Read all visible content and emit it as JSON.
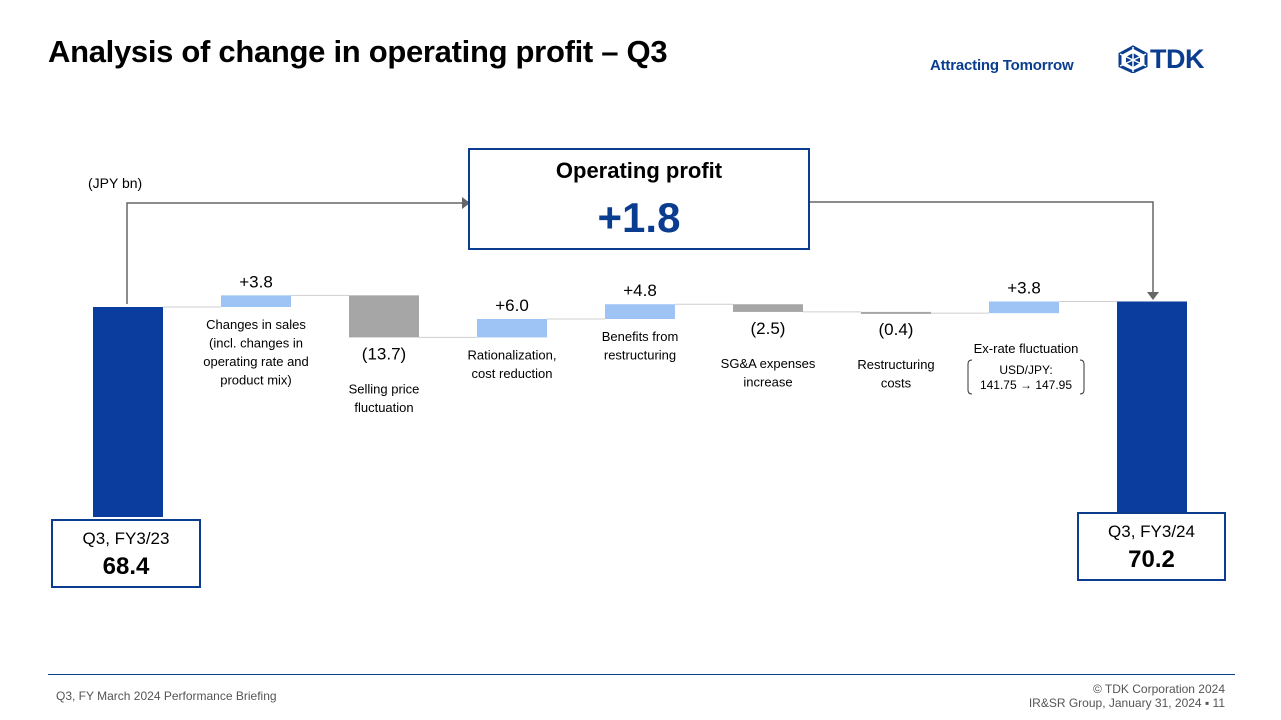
{
  "header": {
    "title": "Analysis of change in operating profit – Q3",
    "tagline": "Attracting Tomorrow",
    "logo_text": "TDK",
    "logo_icon": "tdk-emblem-icon"
  },
  "footer": {
    "left": "Q3, FY March 2024 Performance  Briefing",
    "copyright": "© TDK Corporation 2024",
    "group_date": "IR&SR Group, January 31, 2024",
    "page_number": "11"
  },
  "colors": {
    "total": "#0a3d9e",
    "positive": "#9ec3f5",
    "negative": "#a6a6a6",
    "accent": "#0a3d8f"
  },
  "chart_data": {
    "type": "bar",
    "subtype": "waterfall",
    "unit": "(JPY bn)",
    "categories": [
      "Q3, FY3/23",
      "Changes in sales\n(incl. changes in\noperating rate and\nproduct mix)",
      "Selling price\nfluctuation",
      "Rationalization,\ncost reduction",
      "Benefits from\nrestructuring",
      "SG&A expenses\nincrease",
      "Restructuring\ncosts",
      "Ex-rate fluctuation",
      "Q3, FY3/24"
    ],
    "values": [
      68.4,
      3.8,
      -13.7,
      6.0,
      4.8,
      -2.5,
      -0.4,
      3.8,
      70.2
    ],
    "value_labels": [
      "68.4",
      "+3.8",
      "(13.7)",
      "+6.0",
      "+4.8",
      "(2.5)",
      "(0.4)",
      "+3.8",
      "70.2"
    ],
    "kinds": [
      "total",
      "delta",
      "delta",
      "delta",
      "delta",
      "delta",
      "delta",
      "delta",
      "total"
    ],
    "ex_rate_note": {
      "label": "USD/JPY:",
      "values": "141.75 → 147.95"
    },
    "summary": {
      "title": "Operating profit",
      "value": "+1.8"
    }
  }
}
